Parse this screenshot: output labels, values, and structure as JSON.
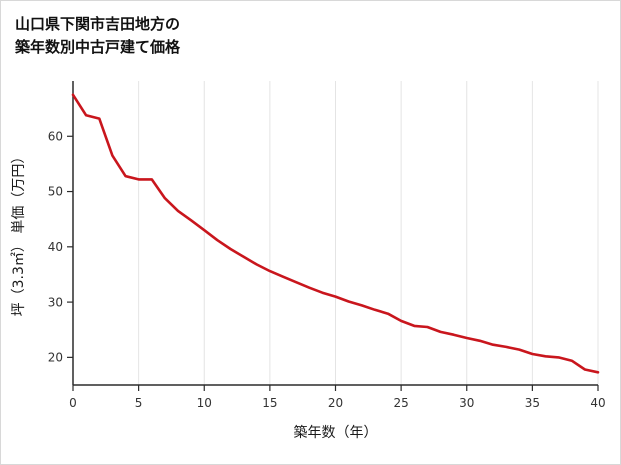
{
  "title": {
    "line1": "山口県下関市吉田地方の",
    "line2": "築年数別中古戸建て価格"
  },
  "chart_data": {
    "type": "line",
    "title": "山口県下関市吉田地方の築年数別中古戸建て価格",
    "xlabel": "築年数（年）",
    "ylabel": "坪（3.3㎡） 単価（万円）",
    "x": [
      0,
      1,
      2,
      3,
      4,
      5,
      6,
      7,
      8,
      9,
      10,
      11,
      12,
      13,
      14,
      15,
      16,
      17,
      18,
      19,
      20,
      21,
      22,
      23,
      24,
      25,
      26,
      27,
      28,
      29,
      30,
      31,
      32,
      33,
      34,
      35,
      36,
      37,
      38,
      39,
      40
    ],
    "y": [
      67.5,
      63.8,
      63.2,
      56.5,
      52.8,
      52.2,
      52.2,
      48.8,
      46.5,
      44.8,
      43.0,
      41.2,
      39.6,
      38.2,
      36.8,
      35.6,
      34.6,
      33.6,
      32.6,
      31.7,
      31.0,
      30.1,
      29.4,
      28.6,
      27.9,
      26.6,
      25.7,
      25.5,
      24.6,
      24.1,
      23.5,
      23.0,
      22.3,
      21.9,
      21.4,
      20.6,
      20.2,
      20.0,
      19.4,
      17.8,
      17.3
    ],
    "xlim": [
      0,
      40
    ],
    "ylim": [
      15,
      70
    ],
    "xticks": [
      0,
      5,
      10,
      15,
      20,
      25,
      30,
      35,
      40
    ],
    "yticks": [
      20,
      30,
      40,
      50,
      60
    ],
    "grid": "vertical-only",
    "legend": "none"
  },
  "colors": {
    "line": "#c9161d",
    "grid": "#e4e4e4",
    "axis": "#2b2b2b",
    "tick_text": "#333333",
    "label_text": "#1a1a1a",
    "background": "#ffffff",
    "border": "#d8d8d8"
  }
}
